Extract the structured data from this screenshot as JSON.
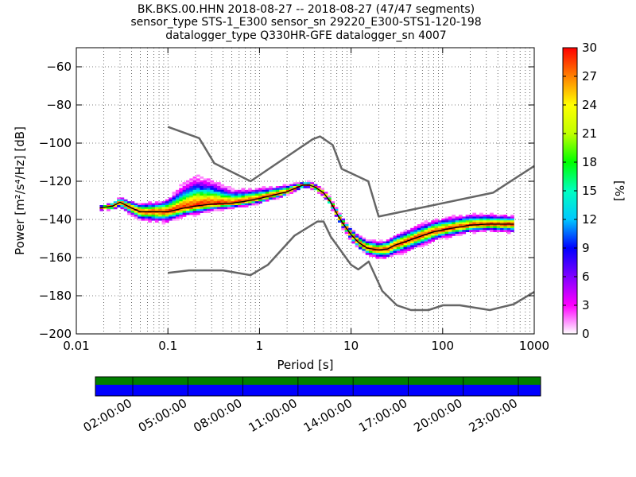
{
  "chart_data": {
    "type": "heatmap",
    "title_lines": [
      "BK.BKS.00.HHN   2018-08-27 -- 2018-08-27  (47/47 segments)",
      "sensor_type STS-1_E300 sensor_sn 29220_E300-STS1-120-198",
      "datalogger_type Q330HR-GFE datalogger_sn 4007"
    ],
    "xlabel": "Period [s]",
    "ylabel": "Power [m²/s⁴/Hz] [dB]",
    "xscale": "log",
    "xlim": [
      0.01,
      1000
    ],
    "ylim": [
      -200,
      -50
    ],
    "xticks": [
      {
        "v": 0.01,
        "label": "0.01"
      },
      {
        "v": 0.1,
        "label": "0.1"
      },
      {
        "v": 1,
        "label": "1"
      },
      {
        "v": 10,
        "label": "10"
      },
      {
        "v": 100,
        "label": "100"
      },
      {
        "v": 1000,
        "label": "1000"
      }
    ],
    "yticks": [
      {
        "v": -60,
        "label": "−60"
      },
      {
        "v": -80,
        "label": "−80"
      },
      {
        "v": -100,
        "label": "−100"
      },
      {
        "v": -120,
        "label": "−120"
      },
      {
        "v": -140,
        "label": "−140"
      },
      {
        "v": -160,
        "label": "−160"
      },
      {
        "v": -180,
        "label": "−180"
      },
      {
        "v": -200,
        "label": "−200"
      }
    ],
    "grid": true,
    "colorbar": {
      "label": "[%]",
      "range": [
        0,
        30
      ],
      "ticks": [
        {
          "v": 0,
          "label": "0"
        },
        {
          "v": 3,
          "label": "3"
        },
        {
          "v": 6,
          "label": "6"
        },
        {
          "v": 9,
          "label": "9"
        },
        {
          "v": 12,
          "label": "12"
        },
        {
          "v": 15,
          "label": "15"
        },
        {
          "v": 18,
          "label": "18"
        },
        {
          "v": 21,
          "label": "21"
        },
        {
          "v": 24,
          "label": "24"
        },
        {
          "v": 27,
          "label": "27"
        },
        {
          "v": 30,
          "label": "30"
        }
      ],
      "colormap": [
        "#ffffff",
        "#ff00ff",
        "#8000ff",
        "#0000ff",
        "#00c8ff",
        "#00ffc0",
        "#00ff00",
        "#c0ff00",
        "#ffff00",
        "#ff8000",
        "#ff0000"
      ]
    },
    "nhnm": [
      [
        0.1,
        -91.5
      ],
      [
        0.22,
        -97.4
      ],
      [
        0.32,
        -110.5
      ],
      [
        0.8,
        -120
      ],
      [
        3.8,
        -98
      ],
      [
        4.6,
        -96.5
      ],
      [
        6.3,
        -101
      ],
      [
        7.9,
        -113.5
      ],
      [
        15.4,
        -120
      ],
      [
        20,
        -138.5
      ],
      [
        354.8,
        -126
      ],
      [
        1000,
        -112
      ]
    ],
    "nlnm": [
      [
        0.1,
        -168
      ],
      [
        0.17,
        -166.7
      ],
      [
        0.4,
        -166.7
      ],
      [
        0.8,
        -169.2
      ],
      [
        1.24,
        -163.7
      ],
      [
        2.4,
        -148.6
      ],
      [
        4.3,
        -141.1
      ],
      [
        5,
        -141.1
      ],
      [
        6,
        -149
      ],
      [
        10,
        -163.8
      ],
      [
        12,
        -166.2
      ],
      [
        15.6,
        -162.1
      ],
      [
        21.9,
        -177.5
      ],
      [
        31.6,
        -185
      ],
      [
        45,
        -187.5
      ],
      [
        70,
        -187.5
      ],
      [
        101,
        -185
      ],
      [
        154,
        -185
      ],
      [
        328,
        -187.5
      ],
      [
        600,
        -184.4
      ],
      [
        1000,
        -178
      ]
    ],
    "mean_curve": [
      [
        0.018,
        -134
      ],
      [
        0.025,
        -133
      ],
      [
        0.03,
        -131
      ],
      [
        0.04,
        -134
      ],
      [
        0.05,
        -136
      ],
      [
        0.07,
        -136
      ],
      [
        0.1,
        -136
      ],
      [
        0.15,
        -134
      ],
      [
        0.2,
        -133
      ],
      [
        0.3,
        -132
      ],
      [
        0.5,
        -131.5
      ],
      [
        0.7,
        -130.5
      ],
      [
        1,
        -129
      ],
      [
        1.5,
        -127
      ],
      [
        2,
        -125.5
      ],
      [
        2.5,
        -123.5
      ],
      [
        3,
        -122
      ],
      [
        3.5,
        -122
      ],
      [
        4,
        -123
      ],
      [
        5,
        -126
      ],
      [
        6,
        -131
      ],
      [
        7,
        -137
      ],
      [
        8,
        -141.5
      ],
      [
        10,
        -148
      ],
      [
        12,
        -152
      ],
      [
        15,
        -155
      ],
      [
        20,
        -156
      ],
      [
        25,
        -155.5
      ],
      [
        30,
        -153.5
      ],
      [
        40,
        -151.5
      ],
      [
        60,
        -148.5
      ],
      [
        80,
        -146.5
      ],
      [
        100,
        -145.5
      ],
      [
        150,
        -144
      ],
      [
        200,
        -143
      ],
      [
        300,
        -142.5
      ],
      [
        500,
        -142.5
      ],
      [
        600,
        -142.5
      ]
    ],
    "spread": [
      [
        0.02,
        1.5,
        1.5
      ],
      [
        0.03,
        3,
        3
      ],
      [
        0.05,
        5,
        5
      ],
      [
        0.08,
        6,
        6
      ],
      [
        0.1,
        6,
        8
      ],
      [
        0.15,
        5,
        14
      ],
      [
        0.2,
        5,
        17
      ],
      [
        0.3,
        4,
        14
      ],
      [
        0.5,
        3,
        8
      ],
      [
        1,
        3,
        6
      ],
      [
        2,
        2,
        4
      ],
      [
        3,
        1.5,
        2
      ],
      [
        5,
        2,
        2
      ],
      [
        8,
        3,
        3
      ],
      [
        15,
        4,
        5
      ],
      [
        20,
        5,
        5
      ],
      [
        30,
        6,
        6
      ],
      [
        60,
        6,
        7
      ],
      [
        100,
        5,
        7
      ],
      [
        300,
        4,
        6
      ],
      [
        600,
        5,
        5
      ]
    ],
    "timeline": {
      "tick_labels": [
        "02:00:00",
        "05:00:00",
        "08:00:00",
        "11:00:00",
        "14:00:00",
        "17:00:00",
        "20:00:00",
        "23:00:00"
      ],
      "colors": {
        "data": "#0000ff",
        "gaps": "#007f00"
      }
    }
  }
}
